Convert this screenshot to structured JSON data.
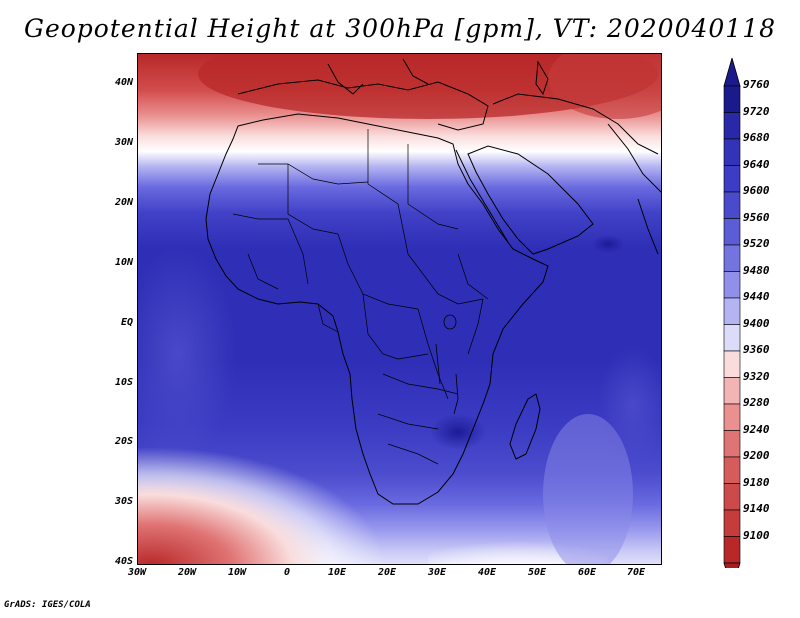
{
  "title": "Geopotential Height at 300hPa [gpm], VT: 2020040118",
  "credit": "GrADS: IGES/COLA",
  "lat_labels": [
    "40N",
    "30N",
    "20N",
    "10N",
    "EQ",
    "10S",
    "20S",
    "30S",
    "40S"
  ],
  "lon_labels": [
    "30W",
    "20W",
    "10W",
    "0",
    "10E",
    "20E",
    "30E",
    "40E",
    "50E",
    "60E",
    "70E"
  ],
  "colorbar": {
    "levels": [
      9760,
      9720,
      9680,
      9640,
      9600,
      9560,
      9520,
      9480,
      9440,
      9400,
      9360,
      9320,
      9280,
      9240,
      9200,
      9180,
      9140,
      9100
    ],
    "colors": [
      "#1a1a8c",
      "#2828a8",
      "#3333b8",
      "#3c3cc4",
      "#4a4acc",
      "#5c5cd6",
      "#7474e0",
      "#9090ea",
      "#b4b4f2",
      "#dcdcfa",
      "#fadcdc",
      "#f2b4b4",
      "#ea9090",
      "#e07474",
      "#d65c5c",
      "#cc4a4a",
      "#c43c3c",
      "#b82828"
    ],
    "top_color": "#1a1a8c",
    "bottom_color": "#a81e1e"
  },
  "colors": {
    "deep_blue": "#2c2cb4",
    "mid_blue": "#3a3ac6",
    "light_blue": "#6a6ae0",
    "pale_blue": "#b4b4f2",
    "white": "#ffffff",
    "pale_red": "#f6c8c8",
    "mid_red": "#e27878",
    "deep_red": "#b82828"
  }
}
